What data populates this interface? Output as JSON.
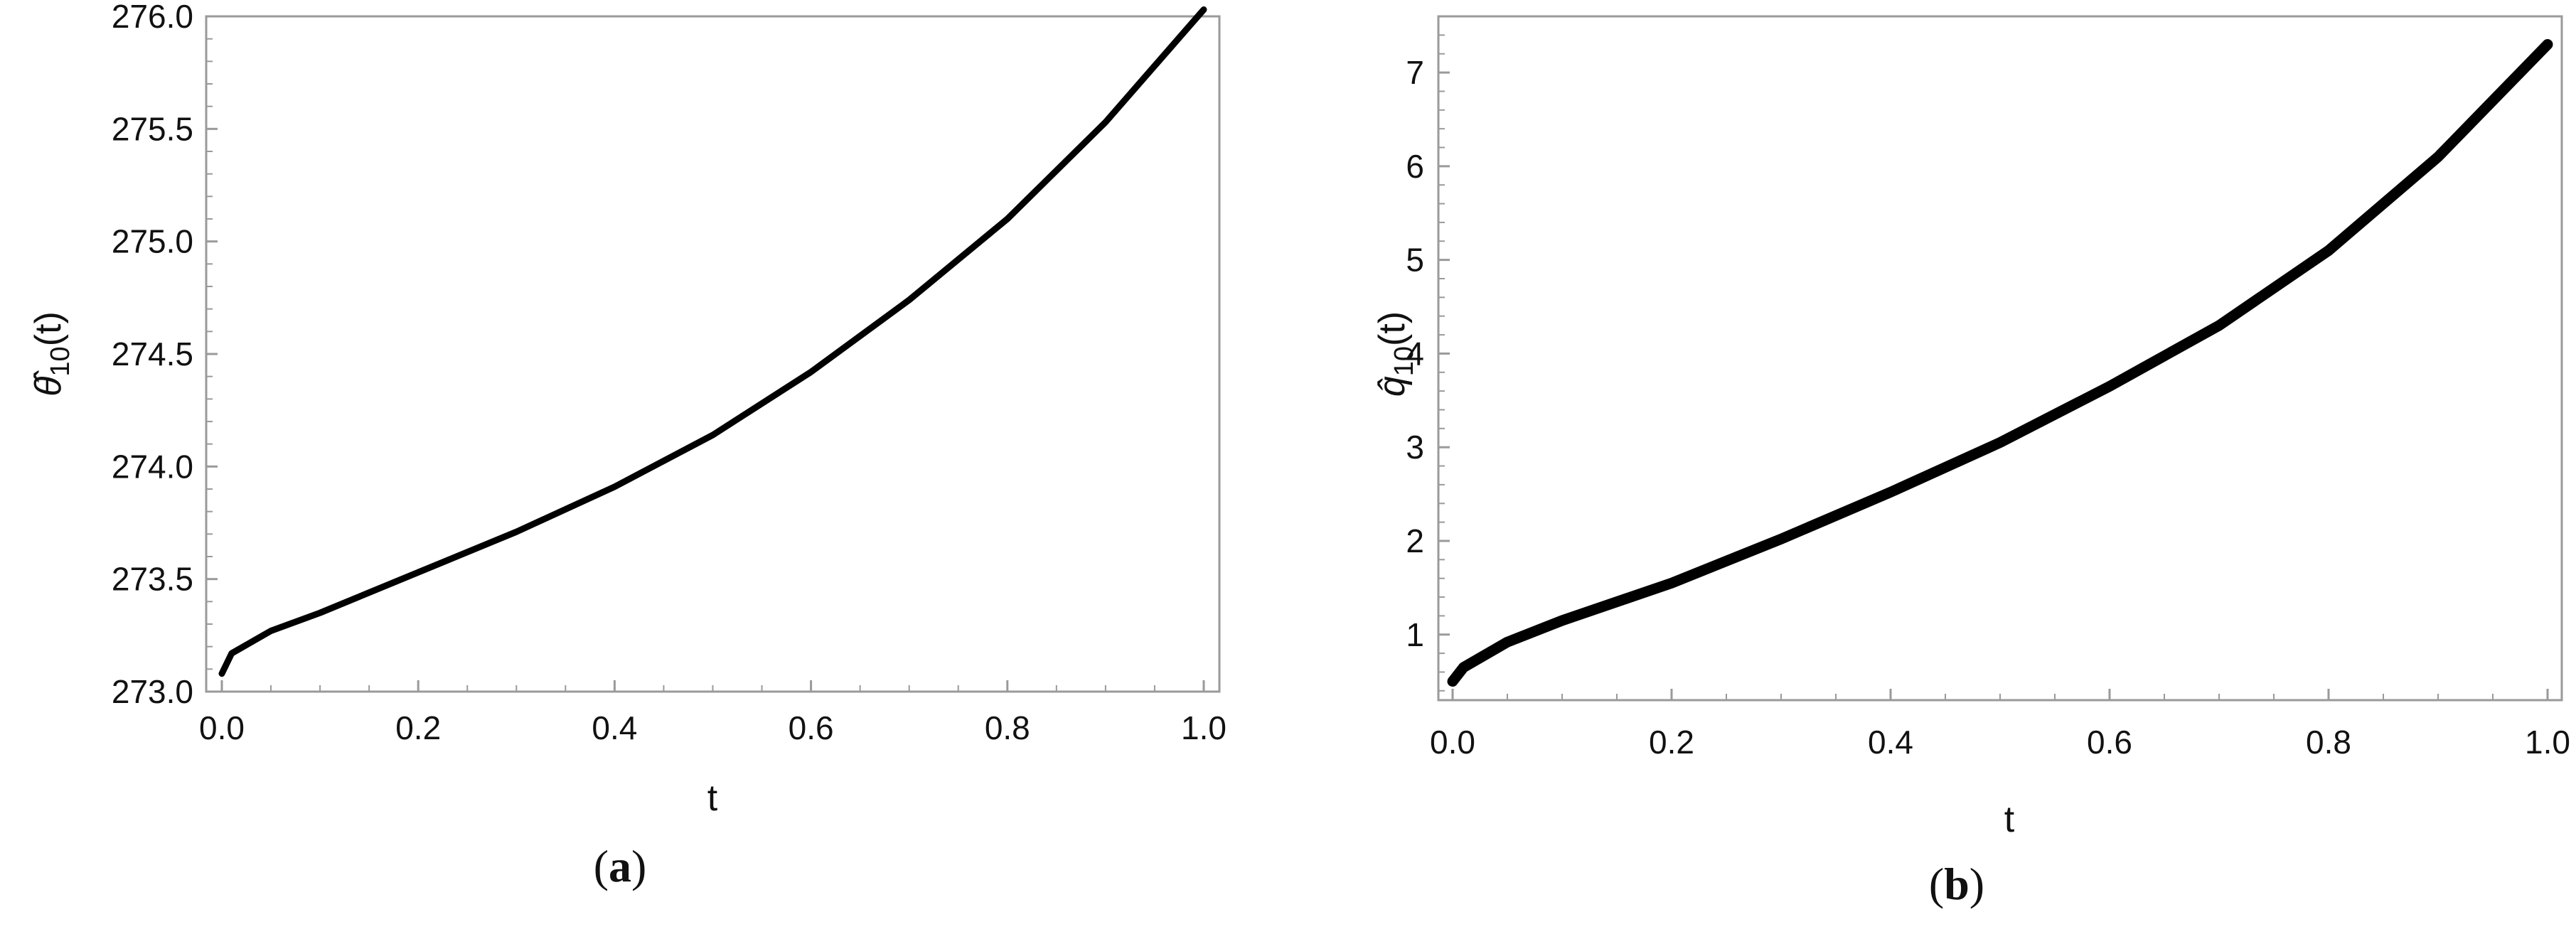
{
  "chart_data": [
    {
      "type": "line",
      "panel_label": "a",
      "xlabel": "t",
      "ylabel": "θ̂10(t)",
      "xlim": [
        0.0,
        1.0
      ],
      "ylim": [
        273.0,
        276.0
      ],
      "xticks": [
        "0.0",
        "0.2",
        "0.4",
        "0.6",
        "0.8",
        "1.0"
      ],
      "yticks": [
        "273.0",
        "273.5",
        "274.0",
        "274.5",
        "275.0",
        "275.5",
        "276.0"
      ],
      "series": [
        {
          "x": [
            0.0,
            0.01,
            0.05,
            0.1,
            0.2,
            0.3,
            0.4,
            0.5,
            0.6,
            0.7,
            0.8,
            0.9,
            1.0
          ],
          "values": [
            273.08,
            273.17,
            273.27,
            273.35,
            273.53,
            273.71,
            273.91,
            274.14,
            274.42,
            274.74,
            275.1,
            275.53,
            276.03
          ]
        }
      ]
    },
    {
      "type": "line",
      "panel_label": "b",
      "xlabel": "t",
      "ylabel": "q̂10(t)",
      "xlim": [
        0.0,
        1.0
      ],
      "ylim": [
        0.3,
        7.6
      ],
      "xticks": [
        "0.0",
        "0.2",
        "0.4",
        "0.6",
        "0.8",
        "1.0"
      ],
      "yticks": [
        "1",
        "2",
        "3",
        "4",
        "5",
        "6",
        "7"
      ],
      "series": [
        {
          "x": [
            0.0,
            0.01,
            0.05,
            0.1,
            0.2,
            0.3,
            0.4,
            0.5,
            0.6,
            0.7,
            0.8,
            0.9,
            1.0
          ],
          "values": [
            0.5,
            0.65,
            0.92,
            1.15,
            1.55,
            2.02,
            2.52,
            3.05,
            3.65,
            4.3,
            5.1,
            6.1,
            7.3
          ]
        }
      ]
    }
  ]
}
